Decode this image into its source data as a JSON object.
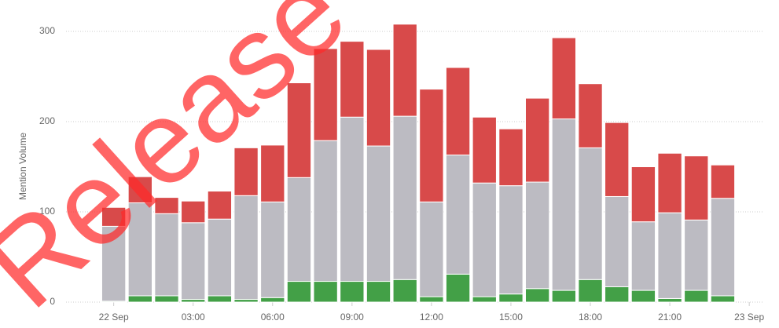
{
  "chart_data": {
    "type": "stacked_bar",
    "y_label": "Mention Volume",
    "watermark": "Release",
    "x": [
      0,
      1,
      2,
      3,
      4,
      5,
      6,
      7,
      8,
      9,
      10,
      11,
      12,
      13,
      14,
      15,
      16,
      17,
      18,
      19,
      20,
      21,
      22,
      23
    ],
    "xlim": [
      -1.8,
      24.5
    ],
    "xticks": [
      {
        "value": 0,
        "label": "22 Sep"
      },
      {
        "value": 3,
        "label": "03:00"
      },
      {
        "value": 6,
        "label": "06:00"
      },
      {
        "value": 9,
        "label": "09:00"
      },
      {
        "value": 12,
        "label": "12:00"
      },
      {
        "value": 15,
        "label": "15:00"
      },
      {
        "value": 18,
        "label": "18:00"
      },
      {
        "value": 21,
        "label": "21:00"
      },
      {
        "value": 24,
        "label": "23 Sep"
      }
    ],
    "ylim": [
      0,
      320
    ],
    "yticks": [
      0,
      100,
      200,
      300
    ],
    "grid": true,
    "series": [
      {
        "color": "#43a047",
        "values": [
          1,
          7,
          7,
          3,
          7,
          3,
          5,
          23,
          23,
          23,
          23,
          25,
          6,
          31,
          6,
          9,
          15,
          13,
          25,
          17,
          13,
          4,
          13,
          7
        ]
      },
      {
        "color": "#bcbbc2",
        "values": [
          83,
          103,
          91,
          85,
          85,
          115,
          106,
          115,
          156,
          182,
          150,
          181,
          105,
          132,
          126,
          120,
          118,
          190,
          146,
          100,
          76,
          95,
          78,
          108
        ]
      },
      {
        "color": "#d84a4a",
        "values": [
          21,
          29,
          18,
          24,
          31,
          53,
          63,
          105,
          102,
          84,
          107,
          102,
          125,
          97,
          73,
          63,
          93,
          90,
          71,
          82,
          61,
          66,
          71,
          37
        ]
      }
    ]
  }
}
